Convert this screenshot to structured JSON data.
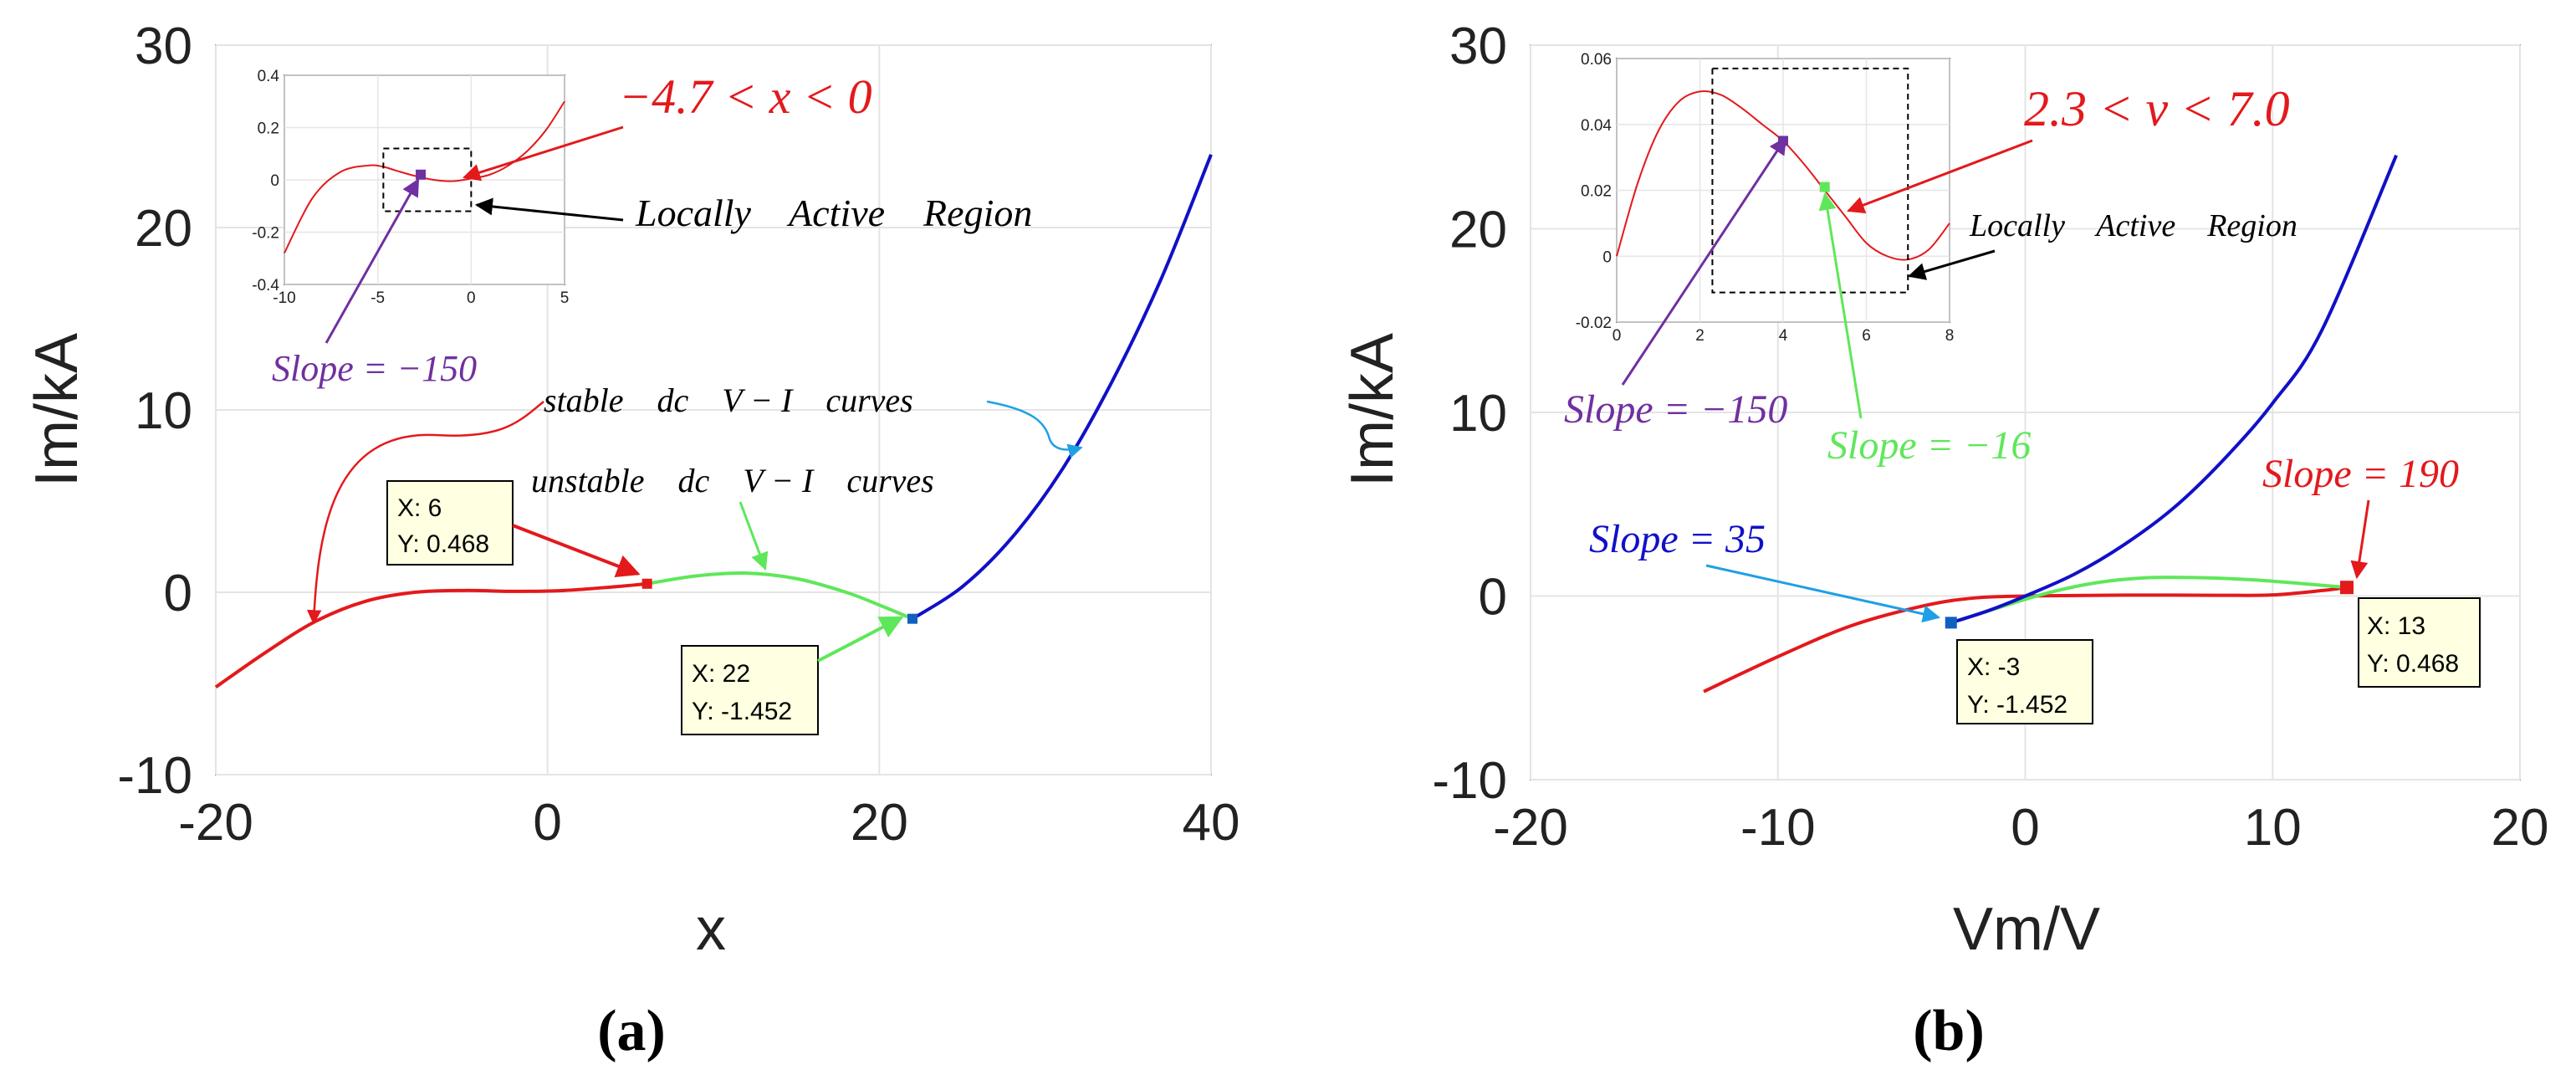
{
  "colors": {
    "red": "#e3191c",
    "green": "#5fe75a",
    "blue": "#1010c8",
    "purple": "#7030a0",
    "lightblue": "#1ea0e6",
    "tipbg": "#ffffe1"
  },
  "chart_data": [
    {
      "panel": "(a)",
      "type": "line",
      "xlabel": "x",
      "ylabel": "Im/kA",
      "xlim": [
        -20,
        40
      ],
      "ylim": [
        -10,
        30
      ],
      "xticks": [
        "-20",
        "0",
        "20",
        "40"
      ],
      "yticks": [
        "-10",
        "0",
        "10",
        "20",
        "30"
      ],
      "series": [
        {
          "name": "stable dc V-I curve (red)",
          "color": "red",
          "x": [
            -20,
            -17,
            -14,
            -11,
            -8,
            -5,
            -2,
            1,
            4,
            6
          ],
          "y": [
            -5.2,
            -3.3,
            -1.6,
            -0.5,
            0.0,
            0.1,
            0.05,
            0.1,
            0.3,
            0.468
          ]
        },
        {
          "name": "unstable dc V-I curves (green)",
          "color": "green",
          "x": [
            6,
            9,
            12,
            15,
            18,
            20,
            22
          ],
          "y": [
            0.468,
            0.9,
            1.05,
            0.75,
            0.0,
            -0.7,
            -1.452
          ]
        },
        {
          "name": "stable dc V-I curve (blue)",
          "color": "blue",
          "x": [
            22,
            25,
            28,
            31,
            34,
            37,
            40
          ],
          "y": [
            -1.452,
            0.3,
            3.0,
            6.7,
            11.5,
            17.2,
            24.0
          ]
        }
      ],
      "datatips": [
        {
          "x_label": "X: 6",
          "y_label": "Y: 0.468"
        },
        {
          "x_label": "X: 22",
          "y_label": "Y: -1.452"
        }
      ],
      "annotations": {
        "range": "−4.7 < x < 0",
        "region": "Locally    Active    Region",
        "slope": "Slope = −150",
        "stable": "stable    dc    V − I    curves",
        "unstable": "unstable    dc    V − I    curves"
      },
      "inset": {
        "xlim": [
          -10,
          5
        ],
        "ylim": [
          -0.4,
          0.4
        ],
        "xticks": [
          "-10",
          "-5",
          "0",
          "5"
        ],
        "yticks": [
          "-0.4",
          "-0.2",
          "0",
          "0.2",
          "0.4"
        ],
        "x": [
          -10,
          -8.5,
          -7,
          -5.5,
          -4.7,
          -4,
          -3,
          -2,
          -1,
          0,
          1,
          2,
          3,
          4,
          5
        ],
        "y": [
          -0.28,
          -0.07,
          0.03,
          0.055,
          0.05,
          0.035,
          0.015,
          0.0,
          -0.005,
          0.005,
          0.02,
          0.055,
          0.11,
          0.19,
          0.3
        ],
        "box": {
          "x0": -4.7,
          "x1": 0,
          "y0": -0.12,
          "y1": 0.12
        },
        "marker": {
          "x": -2.7,
          "y": 0.02
        }
      }
    },
    {
      "panel": "(b)",
      "type": "line",
      "xlabel": "Vm/V",
      "ylabel": "Im/kA",
      "xlim": [
        -20,
        20
      ],
      "ylim": [
        -10,
        30
      ],
      "xticks": [
        "-20",
        "-10",
        "0",
        "10",
        "20"
      ],
      "yticks": [
        "-10",
        "0",
        "10",
        "20",
        "30"
      ],
      "series": [
        {
          "name": "red curve",
          "color": "red",
          "x": [
            -13,
            -10,
            -7,
            -4,
            -2,
            0,
            2,
            4,
            6,
            8,
            10,
            12,
            13
          ],
          "y": [
            -5.2,
            -3.3,
            -1.6,
            -0.5,
            -0.1,
            0.0,
            0.03,
            0.05,
            0.05,
            0.04,
            0.06,
            0.3,
            0.468
          ]
        },
        {
          "name": "green curve",
          "color": "green",
          "x": [
            -3,
            -1,
            1,
            3,
            5,
            7,
            9,
            11,
            13
          ],
          "y": [
            -1.452,
            -0.6,
            0.2,
            0.75,
            1.0,
            1.0,
            0.9,
            0.7,
            0.468
          ]
        },
        {
          "name": "blue curve",
          "color": "blue",
          "x": [
            -3,
            -1.5,
            0,
            2,
            4,
            6,
            8,
            10,
            12,
            15
          ],
          "y": [
            -1.452,
            -0.8,
            0.0,
            1.2,
            2.8,
            4.8,
            7.4,
            10.5,
            14.5,
            24.0
          ]
        }
      ],
      "datatips": [
        {
          "x_label": "X: -3",
          "y_label": "Y: -1.452"
        },
        {
          "x_label": "X: 13",
          "y_label": "Y: 0.468"
        }
      ],
      "annotations": {
        "range": "2.3 < v < 7.0",
        "region": "Locally    Active    Region",
        "slope_purple": "Slope = −150",
        "slope_green": "Slope = −16",
        "slope_blue": "Slope = 35",
        "slope_red": "Slope = 190"
      },
      "inset": {
        "xlim": [
          0,
          8
        ],
        "ylim": [
          -0.02,
          0.06
        ],
        "xticks": [
          "0",
          "2",
          "4",
          "6",
          "8"
        ],
        "yticks": [
          "-0.02",
          "0",
          "0.02",
          "0.04",
          "0.06"
        ],
        "x": [
          0,
          0.5,
          1,
          1.5,
          2,
          2.5,
          3,
          3.5,
          4,
          4.5,
          5,
          5.5,
          6,
          6.5,
          7,
          7.5,
          8
        ],
        "y": [
          0.0,
          0.022,
          0.038,
          0.047,
          0.05,
          0.049,
          0.045,
          0.04,
          0.035,
          0.028,
          0.02,
          0.012,
          0.004,
          0.0,
          -0.001,
          0.002,
          0.01
        ],
        "box": {
          "x0": 2.3,
          "x1": 7.0,
          "y0": -0.011,
          "y1": 0.057
        },
        "marker_purple": {
          "x": 4,
          "y": 0.035
        },
        "marker_green": {
          "x": 5,
          "y": 0.021
        }
      }
    }
  ],
  "panel_labels": [
    "(a)",
    "(b)"
  ]
}
